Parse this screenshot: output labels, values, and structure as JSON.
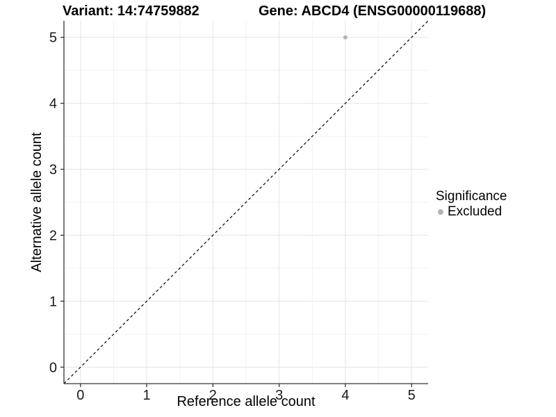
{
  "header": {
    "variant_title": "Variant: 14:74759882",
    "gene_title": "Gene: ABCD4 (ENSG00000119688)"
  },
  "axes": {
    "x_label": "Reference allele count",
    "y_label": "Alternative allele count"
  },
  "legend": {
    "title": "Significance",
    "items": [
      {
        "label": "Excluded",
        "marker": "dot-icon",
        "color": "#b4b4b4"
      }
    ],
    "position": "right"
  },
  "colors": {
    "background": "#ffffff",
    "grid_major": "#e4e4e4",
    "grid_minor": "#f2f2f2",
    "axis_line": "#333333",
    "tick_text": "#1a1a1a",
    "reference_line": "#000000",
    "point": "#b4b4b4"
  },
  "chart_data": {
    "type": "scatter",
    "title": "Variant: 14:74759882 — Gene: ABCD4 (ENSG00000119688)",
    "xlabel": "Reference allele count",
    "ylabel": "Alternative allele count",
    "xlim": [
      -0.25,
      5.25
    ],
    "ylim": [
      -0.25,
      5.25
    ],
    "xticks": [
      0,
      1,
      2,
      3,
      4,
      5
    ],
    "yticks": [
      0,
      1,
      2,
      3,
      4,
      5
    ],
    "grid": {
      "major": true,
      "minor": true,
      "minor_step": 0.5
    },
    "series": [
      {
        "name": "Excluded",
        "color": "#b4b4b4",
        "points": [
          {
            "x": 4,
            "y": 5
          }
        ]
      }
    ],
    "reference_line": {
      "kind": "identity",
      "style": "dashed",
      "color": "#000000",
      "from": [
        -0.25,
        -0.25
      ],
      "to": [
        5.25,
        5.25
      ]
    },
    "legend_position": "right"
  }
}
